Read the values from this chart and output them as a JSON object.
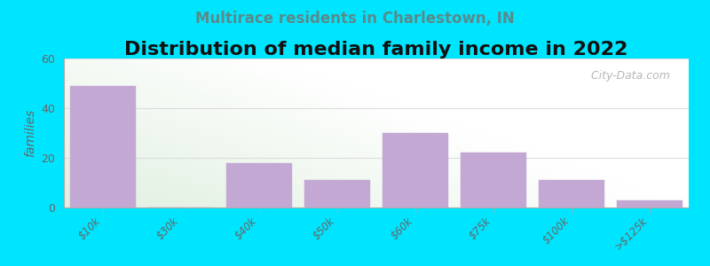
{
  "title": "Distribution of median family income in 2022",
  "subtitle": "Multirace residents in Charlestown, IN",
  "categories": [
    "$10k",
    "$30k",
    "$40k",
    "$50k",
    "$60k",
    "$75k",
    "$100k",
    ">$125k"
  ],
  "values": [
    49,
    0,
    18,
    11,
    30,
    22,
    11,
    3
  ],
  "bar_color": "#c4a8d4",
  "bar_edge_color": "#c4a8d4",
  "background_color": "#00e5ff",
  "ylabel": "families",
  "ylim": [
    0,
    60
  ],
  "yticks": [
    0,
    20,
    40,
    60
  ],
  "title_fontsize": 16,
  "subtitle_fontsize": 12,
  "watermark": "  City-Data.com",
  "grid_color": "#dddddd",
  "tick_color": "#888888",
  "label_color": "#666666",
  "title_color": "#111111",
  "subtitle_color": "#5a8a8a"
}
